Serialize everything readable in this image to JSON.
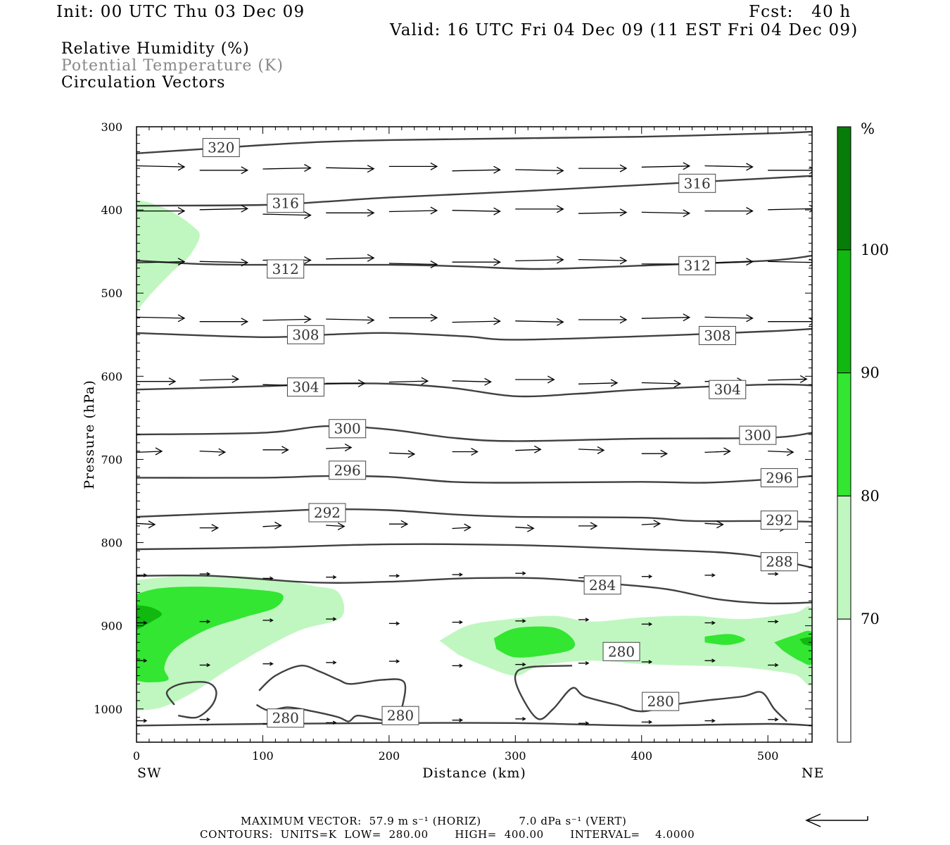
{
  "header": {
    "init": "Init: 00 UTC Thu 03 Dec 09",
    "fcst": "Fcst:   40 h",
    "valid": "Valid: 16 UTC Fri 04 Dec 09 (11 EST Fri 04 Dec 09)"
  },
  "titles": {
    "rh": "Relative Humidity (%)",
    "theta": "Potential Temperature (K)",
    "vectors": "Circulation Vectors"
  },
  "footer": {
    "max_vector": "MAXIMUM VECTOR:  57.9 m s⁻¹ (HORIZ)          7.0 dPa s⁻¹ (VERT)",
    "contours": "CONTOURS:  UNITS=K  LOW=  280.00       HIGH=  400.00       INTERVAL=    4.0000"
  },
  "colors": {
    "rh_70_80": "#c0f7c0",
    "rh_80_90": "#32e632",
    "rh_90_100": "#10b810",
    "rh_100": "#087c08",
    "contour": "#404040",
    "vector": "#000000"
  },
  "chart_data": {
    "type": "contour",
    "xlabel": "Distance (km)",
    "ylabel": "Pressure (hPa)",
    "xlim": [
      0,
      535
    ],
    "ylim": [
      1040,
      300
    ],
    "x_ticks": [
      0,
      100,
      200,
      300,
      400,
      500
    ],
    "y_ticks": [
      300,
      400,
      500,
      600,
      700,
      800,
      900,
      1000
    ],
    "x_end_labels": {
      "left": "SW",
      "right": "NE"
    },
    "colorbar": {
      "unit": "%",
      "levels": [
        70,
        80,
        90,
        100
      ],
      "colors": [
        "#ffffff",
        "#c0f7c0",
        "#32e632",
        "#10b810",
        "#087c08"
      ]
    },
    "theta_contours": [
      {
        "value": 320,
        "points": [
          [
            0,
            332
          ],
          [
            50,
            327
          ],
          [
            100,
            322
          ],
          [
            150,
            318
          ],
          [
            200,
            316
          ],
          [
            300,
            314
          ],
          [
            400,
            312
          ],
          [
            500,
            308
          ],
          [
            535,
            306
          ]
        ]
      },
      {
        "value": 316,
        "points": [
          [
            0,
            395
          ],
          [
            100,
            394
          ],
          [
            150,
            390
          ],
          [
            200,
            385
          ],
          [
            300,
            378
          ],
          [
            400,
            370
          ],
          [
            500,
            362
          ],
          [
            535,
            359
          ]
        ]
      },
      {
        "value": 312,
        "points": [
          [
            0,
            461
          ],
          [
            50,
            465
          ],
          [
            100,
            466
          ],
          [
            200,
            466
          ],
          [
            260,
            468
          ],
          [
            320,
            471
          ],
          [
            400,
            467
          ],
          [
            500,
            461
          ],
          [
            535,
            455
          ]
        ]
      },
      {
        "value": 308,
        "points": [
          [
            0,
            548
          ],
          [
            100,
            553
          ],
          [
            150,
            550
          ],
          [
            200,
            548
          ],
          [
            260,
            552
          ],
          [
            300,
            556
          ],
          [
            400,
            552
          ],
          [
            500,
            546
          ],
          [
            535,
            543
          ]
        ]
      },
      {
        "value": 304,
        "points": [
          [
            0,
            616
          ],
          [
            100,
            612
          ],
          [
            150,
            609
          ],
          [
            200,
            609
          ],
          [
            250,
            614
          ],
          [
            300,
            624
          ],
          [
            350,
            621
          ],
          [
            400,
            616
          ],
          [
            500,
            610
          ],
          [
            535,
            611
          ]
        ]
      },
      {
        "value": 300,
        "points": [
          [
            0,
            670
          ],
          [
            100,
            668
          ],
          [
            150,
            660
          ],
          [
            200,
            664
          ],
          [
            250,
            674
          ],
          [
            300,
            678
          ],
          [
            400,
            675
          ],
          [
            500,
            674
          ],
          [
            535,
            668
          ]
        ]
      },
      {
        "value": 296,
        "points": [
          [
            0,
            722
          ],
          [
            100,
            722
          ],
          [
            150,
            720
          ],
          [
            200,
            721
          ],
          [
            250,
            727
          ],
          [
            300,
            728
          ],
          [
            400,
            727
          ],
          [
            450,
            728
          ],
          [
            500,
            724
          ],
          [
            535,
            720
          ]
        ]
      },
      {
        "value": 292,
        "points": [
          [
            0,
            769
          ],
          [
            100,
            763
          ],
          [
            150,
            760
          ],
          [
            200,
            761
          ],
          [
            250,
            766
          ],
          [
            300,
            769
          ],
          [
            400,
            770
          ],
          [
            440,
            774
          ],
          [
            500,
            774
          ],
          [
            535,
            775
          ]
        ]
      },
      {
        "value": 288,
        "points": [
          [
            0,
            808
          ],
          [
            100,
            806
          ],
          [
            200,
            802
          ],
          [
            300,
            803
          ],
          [
            400,
            808
          ],
          [
            480,
            814
          ],
          [
            535,
            830
          ]
        ]
      },
      {
        "value": 284,
        "points": [
          [
            0,
            840
          ],
          [
            60,
            840
          ],
          [
            140,
            848
          ],
          [
            200,
            847
          ],
          [
            260,
            843
          ],
          [
            320,
            843
          ],
          [
            380,
            850
          ],
          [
            420,
            856
          ],
          [
            460,
            868
          ],
          [
            500,
            873
          ],
          [
            535,
            872
          ]
        ]
      },
      {
        "value": 280,
        "points": [
          [
            0,
            1020
          ],
          [
            100,
            1018
          ],
          [
            200,
            1017
          ],
          [
            300,
            1017
          ],
          [
            400,
            1020
          ],
          [
            500,
            1018
          ],
          [
            535,
            1020
          ]
        ]
      }
    ],
    "contour_labels": [
      {
        "value": "320",
        "x": 67,
        "p": 325
      },
      {
        "value": "316",
        "x": 118,
        "p": 392
      },
      {
        "value": "316",
        "x": 444,
        "p": 368
      },
      {
        "value": "312",
        "x": 118,
        "p": 471
      },
      {
        "value": "312",
        "x": 444,
        "p": 467
      },
      {
        "value": "308",
        "x": 134,
        "p": 550
      },
      {
        "value": "308",
        "x": 460,
        "p": 551
      },
      {
        "value": "304",
        "x": 134,
        "p": 613
      },
      {
        "value": "304",
        "x": 468,
        "p": 616
      },
      {
        "value": "300",
        "x": 167,
        "p": 663
      },
      {
        "value": "300",
        "x": 492,
        "p": 671
      },
      {
        "value": "296",
        "x": 167,
        "p": 713
      },
      {
        "value": "296",
        "x": 509,
        "p": 722
      },
      {
        "value": "292",
        "x": 151,
        "p": 764
      },
      {
        "value": "292",
        "x": 509,
        "p": 773
      },
      {
        "value": "288",
        "x": 509,
        "p": 823
      },
      {
        "value": "284",
        "x": 369,
        "p": 851
      },
      {
        "value": "280",
        "x": 384,
        "p": 931
      },
      {
        "value": "280",
        "x": 415,
        "p": 991
      },
      {
        "value": "280",
        "x": 118,
        "p": 1011
      },
      {
        "value": "280",
        "x": 209,
        "p": 1008
      }
    ],
    "vector_levels_hPa": [
      350,
      402,
      462,
      532,
      607,
      690,
      780,
      840,
      895,
      945,
      1015
    ],
    "vector_x_km": [
      0,
      50,
      100,
      150,
      200,
      250,
      300,
      350,
      400,
      450,
      500,
      535
    ]
  }
}
